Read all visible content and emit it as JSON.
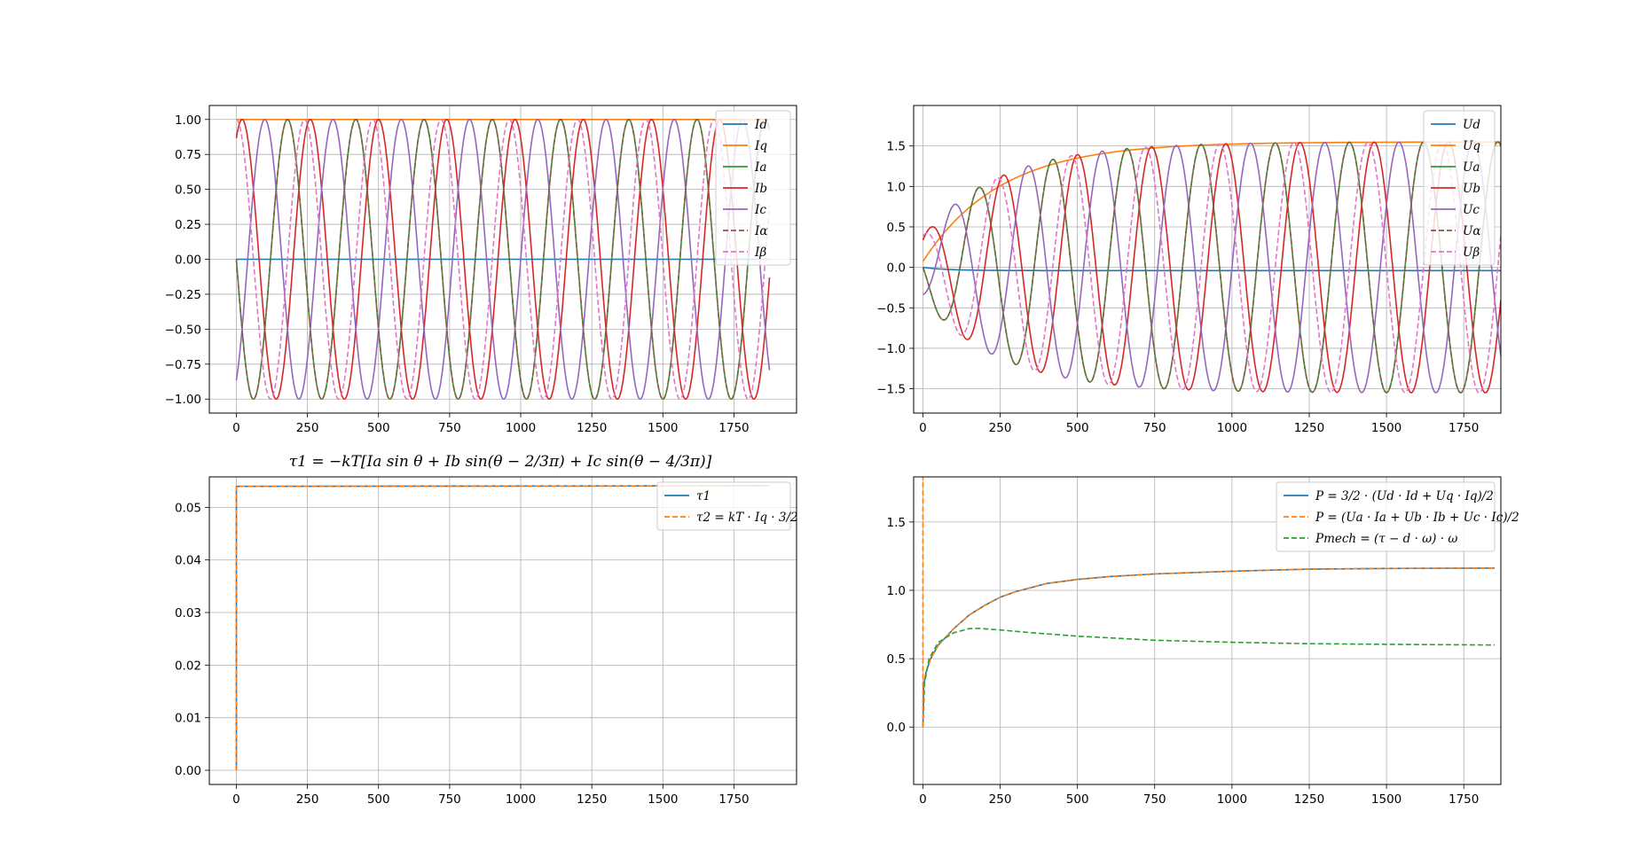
{
  "colors": {
    "c0": "#1f77b4",
    "c1": "#ff7f0e",
    "c2": "#2ca02c",
    "c3": "#d62728",
    "c4": "#9467bd",
    "c5": "#8c564b",
    "c6": "#e377c2",
    "grid": "#b0b0b0"
  },
  "chart_data": [
    {
      "type": "line",
      "title": "",
      "xlim": [
        -95,
        1970
      ],
      "ylim": [
        -1.1,
        1.1
      ],
      "xticks": [
        0,
        250,
        500,
        750,
        1000,
        1250,
        1500,
        1750
      ],
      "yticks": [
        -1.0,
        -0.75,
        -0.5,
        -0.25,
        0.0,
        0.25,
        0.5,
        0.75,
        1.0
      ],
      "ytick_labels": [
        "−1.00",
        "−0.75",
        "−0.50",
        "−0.25",
        "0.00",
        "0.25",
        "0.50",
        "0.75",
        "1.00"
      ],
      "grid": true,
      "legend_position": "top-right",
      "sim": {
        "x_end": 1875,
        "period": 240
      },
      "series": [
        {
          "name": "I_d",
          "legend": "Id",
          "color": "c0",
          "dash": false,
          "model": "const",
          "value": 0.0
        },
        {
          "name": "I_q",
          "legend": "Iq",
          "color": "c1",
          "dash": false,
          "model": "const",
          "value": 1.0
        },
        {
          "name": "I_a",
          "legend": "Ia",
          "color": "c2",
          "dash": false,
          "model": "sin",
          "amplitude": 1.0,
          "phase_deg": 180
        },
        {
          "name": "I_b",
          "legend": "Ib",
          "color": "c3",
          "dash": false,
          "model": "sin",
          "amplitude": 1.0,
          "phase_deg": 60
        },
        {
          "name": "I_c",
          "legend": "Ic",
          "color": "c4",
          "dash": false,
          "model": "sin",
          "amplitude": 1.0,
          "phase_deg": -60
        },
        {
          "name": "I_alpha",
          "legend": "Iα",
          "color": "c5",
          "dash": true,
          "model": "sin",
          "amplitude": 1.0,
          "phase_deg": 180
        },
        {
          "name": "I_beta",
          "legend": "Iβ",
          "color": "c6",
          "dash": true,
          "model": "sin",
          "amplitude": 1.0,
          "phase_deg": 90
        }
      ]
    },
    {
      "type": "line",
      "title": "",
      "xlim": [
        -30,
        1870
      ],
      "ylim": [
        -1.8,
        2.0
      ],
      "xticks": [
        0,
        250,
        500,
        750,
        1000,
        1250,
        1500,
        1750
      ],
      "yticks": [
        -1.5,
        -1.0,
        -0.5,
        0.0,
        0.5,
        1.0,
        1.5
      ],
      "ytick_labels": [
        "−1.5",
        "−1.0",
        "−0.5",
        "0.0",
        "0.5",
        "1.0",
        "1.5"
      ],
      "grid": true,
      "legend_position": "top-right",
      "sim": {
        "x_end": 1870,
        "period": 240,
        "amp_final": 1.55,
        "tau": 250
      },
      "series": [
        {
          "name": "U_d",
          "legend": "Ud",
          "color": "c0",
          "dash": false,
          "model": "drift",
          "value": -0.04
        },
        {
          "name": "U_q",
          "legend": "Uq",
          "color": "c1",
          "dash": false,
          "model": "rise",
          "value": 1.55
        },
        {
          "name": "U_a",
          "legend": "Ua",
          "color": "c2",
          "dash": false,
          "model": "sinrise",
          "phase_deg": 180
        },
        {
          "name": "U_b",
          "legend": "Ub",
          "color": "c3",
          "dash": false,
          "model": "sinrise",
          "phase_deg": 60
        },
        {
          "name": "U_c",
          "legend": "Uc",
          "color": "c4",
          "dash": false,
          "model": "sinrise",
          "phase_deg": -60
        },
        {
          "name": "U_alpha",
          "legend": "Uα",
          "color": "c5",
          "dash": true,
          "model": "sinrise",
          "phase_deg": 180
        },
        {
          "name": "U_beta",
          "legend": "Uβ",
          "color": "c6",
          "dash": true,
          "model": "sinrise",
          "phase_deg": 90
        }
      ]
    },
    {
      "type": "line",
      "title": "τ1 = −kT[Ia sin θ + Ib sin(θ − 2/3π) + Ic sin(θ − 4/3π)]",
      "xlim": [
        -95,
        1970
      ],
      "ylim": [
        -0.0027,
        0.0558
      ],
      "xticks": [
        0,
        250,
        500,
        750,
        1000,
        1250,
        1500,
        1750
      ],
      "yticks": [
        0.0,
        0.01,
        0.02,
        0.03,
        0.04,
        0.05
      ],
      "ytick_labels": [
        "0.00",
        "0.01",
        "0.02",
        "0.03",
        "0.04",
        "0.05"
      ],
      "grid": true,
      "legend_position": "top-right",
      "series": [
        {
          "name": "tau_1",
          "legend": "τ1",
          "color": "c0",
          "dash": false,
          "points": [
            [
              0,
              0.0
            ],
            [
              0,
              0.054
            ],
            [
              1875,
              0.0541
            ]
          ]
        },
        {
          "name": "tau_2",
          "legend": "τ2 = kT · Iq · 3/2",
          "color": "c1",
          "dash": true,
          "points": [
            [
              0,
              0.0
            ],
            [
              0,
              0.054
            ],
            [
              1875,
              0.0541
            ]
          ]
        }
      ]
    },
    {
      "type": "line",
      "title": "",
      "xlim": [
        -30,
        1870
      ],
      "ylim": [
        -0.42,
        1.83
      ],
      "xticks": [
        0,
        250,
        500,
        750,
        1000,
        1250,
        1500,
        1750
      ],
      "yticks": [
        0.0,
        0.5,
        1.0,
        1.5
      ],
      "ytick_labels": [
        "0.0",
        "0.5",
        "1.0",
        "1.5"
      ],
      "grid": true,
      "legend_position": "top-right",
      "series": [
        {
          "name": "P_dq",
          "legend": "P = 3/2 · (Ud · Id + Uq · Iq)/2",
          "color": "c0",
          "dash": false,
          "points": [
            [
              0,
              0.0
            ],
            [
              2,
              0.3
            ],
            [
              10,
              0.4
            ],
            [
              25,
              0.5
            ],
            [
              50,
              0.6
            ],
            [
              100,
              0.72
            ],
            [
              150,
              0.82
            ],
            [
              200,
              0.89
            ],
            [
              250,
              0.95
            ],
            [
              300,
              0.99
            ],
            [
              400,
              1.05
            ],
            [
              500,
              1.08
            ],
            [
              600,
              1.1
            ],
            [
              750,
              1.12
            ],
            [
              1000,
              1.14
            ],
            [
              1250,
              1.155
            ],
            [
              1500,
              1.16
            ],
            [
              1850,
              1.163
            ]
          ]
        },
        {
          "name": "P_abc",
          "legend": "P = (Ua · Ia + Ub · Ib + Uc · Ic)/2",
          "color": "c1",
          "dash": true,
          "points": [
            [
              0,
              0.0
            ],
            [
              2,
              0.3
            ],
            [
              10,
              0.4
            ],
            [
              25,
              0.5
            ],
            [
              50,
              0.6
            ],
            [
              100,
              0.72
            ],
            [
              150,
              0.82
            ],
            [
              200,
              0.89
            ],
            [
              250,
              0.95
            ],
            [
              300,
              0.99
            ],
            [
              400,
              1.05
            ],
            [
              500,
              1.08
            ],
            [
              600,
              1.1
            ],
            [
              750,
              1.12
            ],
            [
              1000,
              1.14
            ],
            [
              1250,
              1.155
            ],
            [
              1500,
              1.16
            ],
            [
              1850,
              1.163
            ]
          ]
        },
        {
          "name": "P_mech",
          "legend": "Pmech = (τ − d · ω) · ω",
          "color": "c2",
          "dash": true,
          "points": [
            [
              0,
              0.0
            ],
            [
              5,
              0.32
            ],
            [
              20,
              0.5
            ],
            [
              50,
              0.62
            ],
            [
              100,
              0.69
            ],
            [
              150,
              0.72
            ],
            [
              180,
              0.722
            ],
            [
              250,
              0.71
            ],
            [
              350,
              0.69
            ],
            [
              500,
              0.665
            ],
            [
              750,
              0.635
            ],
            [
              1000,
              0.62
            ],
            [
              1250,
              0.61
            ],
            [
              1500,
              0.605
            ],
            [
              1850,
              0.6
            ]
          ]
        }
      ],
      "spike": {
        "x": 0,
        "y_top": 1.83,
        "color": "c1"
      }
    }
  ]
}
